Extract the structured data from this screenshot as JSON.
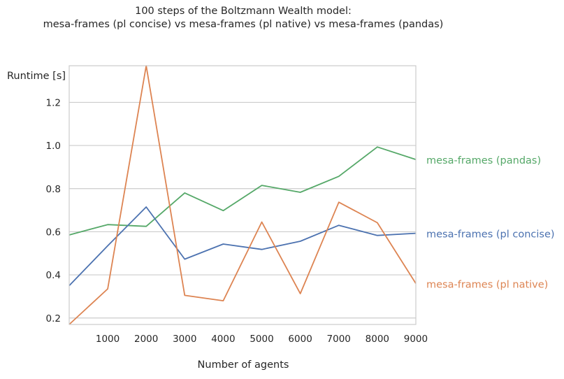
{
  "chart_data": {
    "type": "line",
    "title_line1": "100 steps of the Boltzmann Wealth model:",
    "title_line2": "mesa-frames (pl concise) vs mesa-frames (pl native) vs mesa-frames (pandas)",
    "xlabel": "Number of agents",
    "ylabel": "Runtime [s]",
    "x": [
      1,
      1001,
      2001,
      3001,
      4001,
      5001,
      6001,
      7001,
      8001,
      9001
    ],
    "xlim": [
      1,
      9001
    ],
    "ylim": [
      0.17,
      1.37
    ],
    "xticks": [
      1000,
      2000,
      3000,
      4000,
      5000,
      6000,
      7000,
      8000,
      9000
    ],
    "yticks": [
      0.2,
      0.4,
      0.6,
      0.8,
      1.0,
      1.2
    ],
    "grid": "horizontal",
    "legend": "inline labels at right end of lines",
    "series": [
      {
        "name": "mesa-frames (pandas)",
        "color": "#55a868",
        "values": [
          0.585,
          0.633,
          0.625,
          0.78,
          0.698,
          0.815,
          0.783,
          0.857,
          0.993,
          0.935
        ]
      },
      {
        "name": "mesa-frames (pl concise)",
        "color": "#4c72b0",
        "values": [
          0.35,
          0.535,
          0.715,
          0.473,
          0.543,
          0.518,
          0.556,
          0.63,
          0.583,
          0.593
        ]
      },
      {
        "name": "mesa-frames (pl native)",
        "color": "#dd8452",
        "values": [
          0.17,
          0.335,
          1.37,
          0.305,
          0.28,
          0.645,
          0.313,
          0.737,
          0.642,
          0.36
        ]
      }
    ]
  }
}
